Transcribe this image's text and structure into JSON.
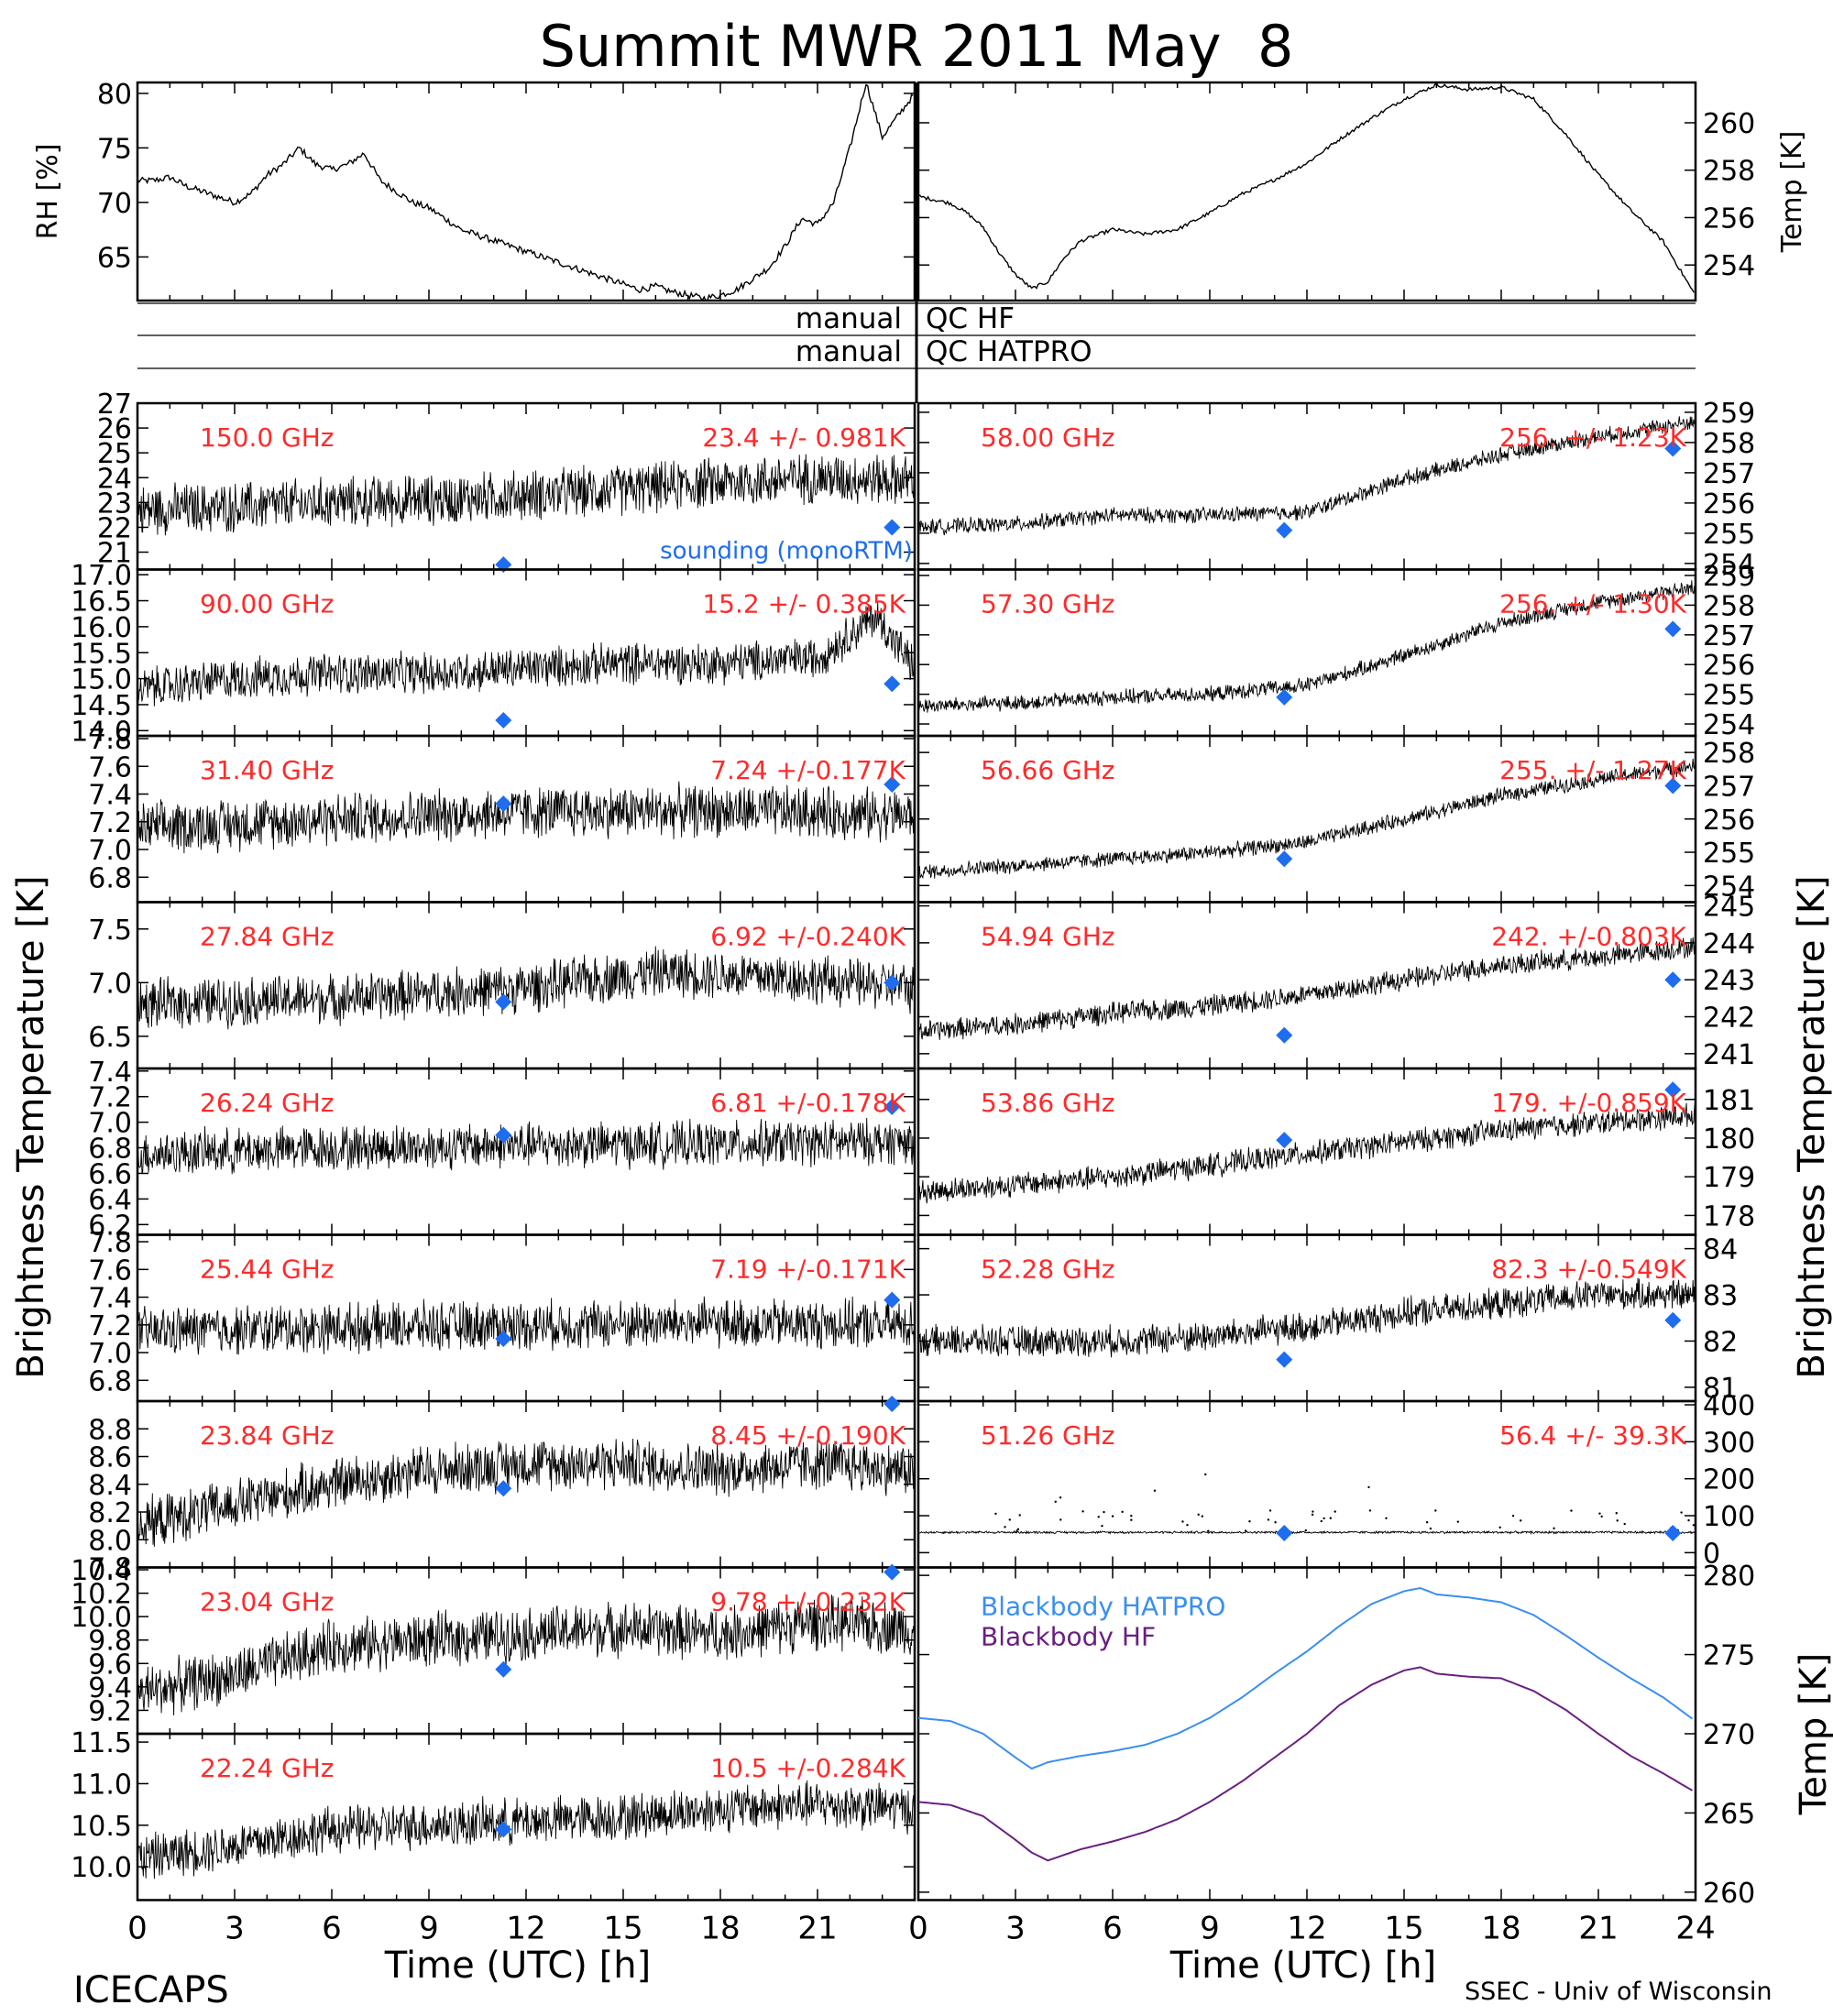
{
  "title": "Summit MWR 2011 May  8",
  "footer": {
    "left": "ICECAPS",
    "right": "SSEC - Univ of Wisconsin",
    "xlabel": "Time (UTC) [h]"
  },
  "axis_titles": {
    "left": "Brightness Temperature [K]",
    "right": "Brightness Temperature [K]"
  },
  "qc_labels": {
    "hf_left": "manual",
    "hf_right": "QC HF",
    "hatpro_left": "manual",
    "hatpro_right": "QC HATPRO"
  },
  "colors": {
    "annotation": "#ff2a2a",
    "sounding_marker": "#1e6cf0",
    "blackbody_hatpro": "#3a8ff0",
    "blackbody_hf": "#6a2080",
    "trace": "#000000"
  },
  "chart_data": [
    {
      "type": "line",
      "panel": "rh",
      "ylabel": "RH [%]",
      "xlim": [
        0,
        24
      ],
      "ylim": [
        61,
        81
      ],
      "yticks": [
        65,
        70,
        75,
        80
      ],
      "x": [
        0,
        0.5,
        1,
        1.5,
        2,
        2.5,
        3,
        3.5,
        4,
        4.5,
        5,
        5.5,
        6,
        6.5,
        7,
        7.5,
        8,
        8.5,
        9,
        9.5,
        10,
        10.5,
        11,
        11.5,
        12,
        12.5,
        13,
        13.5,
        14,
        14.5,
        15,
        15.5,
        16,
        16.5,
        17,
        17.5,
        18,
        18.5,
        19,
        19.5,
        20,
        20.5,
        21,
        21.5,
        22,
        22.5,
        23,
        23.5,
        24
      ],
      "y": [
        72,
        72,
        72.3,
        71.5,
        71,
        70.5,
        70,
        70.8,
        72.5,
        73.5,
        75,
        73.5,
        73,
        73.5,
        74.5,
        72,
        71,
        70,
        69.5,
        68.5,
        67.5,
        67,
        66.5,
        66,
        65.5,
        65,
        64.5,
        64,
        63.5,
        63,
        62.5,
        62,
        62.3,
        61.8,
        61.5,
        61.2,
        61.5,
        62,
        63,
        64,
        66,
        68.5,
        68,
        70,
        75,
        81,
        76,
        78,
        80
      ]
    },
    {
      "type": "line",
      "panel": "temp",
      "ylabel": "Temp [K]",
      "xlim": [
        0,
        24
      ],
      "ylim": [
        252.5,
        261.7
      ],
      "yticks": [
        254,
        256,
        258,
        260
      ],
      "x": [
        0,
        1,
        1.5,
        2,
        2.5,
        3,
        3.5,
        4,
        4.5,
        5,
        6,
        7,
        8,
        9,
        10,
        11,
        12,
        13,
        14,
        15,
        16,
        17,
        18,
        19,
        20,
        21,
        22,
        23,
        24
      ],
      "y": [
        256.9,
        256.6,
        256.2,
        255.6,
        254.5,
        253.6,
        253,
        253.3,
        254.3,
        255,
        255.5,
        255.3,
        255.5,
        256.2,
        257,
        257.6,
        258.3,
        259.3,
        260.2,
        261,
        261.6,
        261.4,
        261.5,
        261,
        259.5,
        257.8,
        256.3,
        255,
        252.7
      ]
    },
    {
      "type": "scatter",
      "panel": "channel",
      "side": "left",
      "freq_label": "150.0 GHz",
      "stat_label": "23.4 +/- 0.981K",
      "extra_label": "sounding (monoRTM)",
      "ylim": [
        20.3,
        27
      ],
      "ytick_labels": [
        "27",
        "26",
        "25",
        "24",
        "23",
        "22",
        "21"
      ],
      "yticks": [
        27,
        26,
        25,
        24,
        23,
        22,
        21
      ],
      "trend_x": [
        0,
        3,
        6,
        9,
        12,
        15,
        18,
        21,
        24
      ],
      "trend_y": [
        22.7,
        22.8,
        23.0,
        23.1,
        23.3,
        23.5,
        23.8,
        24.0,
        23.9
      ],
      "noise": 0.98,
      "sounding_x": [
        11.3,
        23.3
      ],
      "sounding_y": [
        20.5,
        22.0
      ]
    },
    {
      "type": "scatter",
      "panel": "channel",
      "side": "left",
      "freq_label": "90.00 GHz",
      "stat_label": "15.2 +/- 0.385K",
      "ylim": [
        13.9,
        17.1
      ],
      "ytick_labels": [
        "17.0",
        "16.5",
        "16.0",
        "15.5",
        "15.0",
        "14.5",
        "14.0"
      ],
      "yticks": [
        17.0,
        16.5,
        16.0,
        15.5,
        15.0,
        14.5,
        14.0
      ],
      "trend_x": [
        0,
        3,
        6,
        9,
        12,
        15,
        18,
        21,
        22.8,
        24
      ],
      "trend_y": [
        14.8,
        15.0,
        15.1,
        15.1,
        15.2,
        15.3,
        15.3,
        15.4,
        16.2,
        15.2
      ],
      "noise": 0.38,
      "sounding_x": [
        11.3,
        23.3
      ],
      "sounding_y": [
        14.2,
        14.9
      ]
    },
    {
      "type": "scatter",
      "panel": "channel",
      "side": "left",
      "freq_label": "31.40 GHz",
      "stat_label": "7.24 +/-0.177K",
      "ylim": [
        6.62,
        7.82
      ],
      "ytick_labels": [
        "7.8",
        "7.6",
        "7.4",
        "7.2",
        "7.0",
        "6.8"
      ],
      "yticks": [
        7.8,
        7.6,
        7.4,
        7.2,
        7.0,
        6.8
      ],
      "trend_x": [
        0,
        6,
        12,
        18,
        24
      ],
      "trend_y": [
        7.15,
        7.22,
        7.27,
        7.28,
        7.25
      ],
      "noise": 0.18,
      "sounding_x": [
        11.3,
        23.3
      ],
      "sounding_y": [
        7.33,
        7.47
      ]
    },
    {
      "type": "scatter",
      "panel": "channel",
      "side": "left",
      "freq_label": "27.84 GHz",
      "stat_label": "6.92 +/-0.240K",
      "ylim": [
        6.2,
        7.75
      ],
      "ytick_labels": [
        "7.5",
        "7.0",
        "6.5"
      ],
      "yticks": [
        7.5,
        7.0,
        6.5
      ],
      "trend_x": [
        0,
        6,
        12,
        16,
        20,
        24
      ],
      "trend_y": [
        6.8,
        6.85,
        6.95,
        7.1,
        7.05,
        6.95
      ],
      "noise": 0.22,
      "sounding_x": [
        11.3,
        23.3
      ],
      "sounding_y": [
        6.82,
        7.0
      ]
    },
    {
      "type": "scatter",
      "panel": "channel",
      "side": "left",
      "freq_label": "26.24 GHz",
      "stat_label": "6.81 +/-0.178K",
      "ylim": [
        6.12,
        7.42
      ],
      "ytick_labels": [
        "7.4",
        "7.2",
        "7.0",
        "6.8",
        "6.6",
        "6.4",
        "6.2"
      ],
      "yticks": [
        7.4,
        7.2,
        7.0,
        6.8,
        6.6,
        6.4,
        6.2
      ],
      "trend_x": [
        0,
        6,
        12,
        18,
        24
      ],
      "trend_y": [
        6.75,
        6.8,
        6.82,
        6.83,
        6.85
      ],
      "noise": 0.17,
      "sounding_x": [
        11.3,
        23.3
      ],
      "sounding_y": [
        6.9,
        7.12
      ]
    },
    {
      "type": "scatter",
      "panel": "channel",
      "side": "left",
      "freq_label": "25.44 GHz",
      "stat_label": "7.19 +/-0.171K",
      "ylim": [
        6.65,
        7.85
      ],
      "ytick_labels": [
        "7.8",
        "7.6",
        "7.4",
        "7.2",
        "7.0",
        "6.8"
      ],
      "yticks": [
        7.8,
        7.6,
        7.4,
        7.2,
        7.0,
        6.8
      ],
      "trend_x": [
        0,
        6,
        12,
        18,
        24
      ],
      "trend_y": [
        7.15,
        7.18,
        7.2,
        7.21,
        7.2
      ],
      "noise": 0.17,
      "sounding_x": [
        11.3,
        23.3
      ],
      "sounding_y": [
        7.1,
        7.38
      ]
    },
    {
      "type": "scatter",
      "panel": "channel",
      "side": "left",
      "freq_label": "23.84 GHz",
      "stat_label": "8.45 +/-0.190K",
      "ylim": [
        7.8,
        9.0
      ],
      "ytick_labels": [
        "8.8",
        "8.6",
        "8.4",
        "8.2",
        "8.0",
        "7.8"
      ],
      "yticks": [
        8.8,
        8.6,
        8.4,
        8.2,
        8.0,
        7.8
      ],
      "trend_x": [
        0,
        3,
        6,
        9,
        12,
        15,
        18,
        21,
        24
      ],
      "trend_y": [
        8.1,
        8.25,
        8.4,
        8.5,
        8.55,
        8.55,
        8.5,
        8.55,
        8.5
      ],
      "noise": 0.18,
      "sounding_x": [
        11.3,
        23.3
      ],
      "sounding_y": [
        8.37,
        8.98
      ]
    },
    {
      "type": "scatter",
      "panel": "channel",
      "side": "left",
      "freq_label": "23.04 GHz",
      "stat_label": "9.78 +/-0.232K",
      "ylim": [
        9.0,
        10.42
      ],
      "ytick_labels": [
        "10.4",
        "10.2",
        "10.0",
        "9.8",
        "9.6",
        "9.4",
        "9.2"
      ],
      "yticks": [
        10.4,
        10.2,
        10.0,
        9.8,
        9.6,
        9.4,
        9.2
      ],
      "trend_x": [
        0,
        3,
        6,
        9,
        12,
        15,
        18,
        21,
        24
      ],
      "trend_y": [
        9.35,
        9.5,
        9.75,
        9.8,
        9.85,
        9.9,
        9.85,
        9.95,
        9.9
      ],
      "noise": 0.22,
      "sounding_x": [
        11.3,
        23.3
      ],
      "sounding_y": [
        9.55,
        10.38
      ]
    },
    {
      "type": "scatter",
      "panel": "channel",
      "side": "left",
      "freq_label": "22.24 GHz",
      "stat_label": "10.5 +/-0.284K",
      "ylim": [
        9.6,
        11.6
      ],
      "ytick_labels": [
        "11.5",
        "11.0",
        "10.5",
        "10.0"
      ],
      "yticks": [
        11.5,
        11.0,
        10.5,
        10.0
      ],
      "trend_x": [
        0,
        3,
        6,
        9,
        12,
        15,
        18,
        21,
        24
      ],
      "trend_y": [
        10.1,
        10.25,
        10.45,
        10.5,
        10.55,
        10.6,
        10.7,
        10.75,
        10.7
      ],
      "noise": 0.27,
      "sounding_x": [
        11.3
      ],
      "sounding_y": [
        10.45
      ]
    },
    {
      "type": "scatter",
      "panel": "channel",
      "side": "right",
      "freq_label": "58.00 GHz",
      "stat_label": "256. +/- 1.23K",
      "ylim": [
        253.8,
        259.3
      ],
      "ytick_labels": [
        "259",
        "258",
        "257",
        "256",
        "255",
        "254"
      ],
      "yticks": [
        259,
        258,
        257,
        256,
        255,
        254
      ],
      "trend_x": [
        0,
        3,
        6,
        9,
        12,
        15,
        18,
        21,
        24
      ],
      "trend_y": [
        255.2,
        255.3,
        255.6,
        255.6,
        255.7,
        256.8,
        257.6,
        258.2,
        258.7
      ],
      "noise": 0.25,
      "sounding_x": [
        11.3,
        23.3
      ],
      "sounding_y": [
        255.1,
        257.8
      ]
    },
    {
      "type": "scatter",
      "panel": "channel",
      "side": "right",
      "freq_label": "57.30 GHz",
      "stat_label": "256. +/- 1.30K",
      "ylim": [
        253.6,
        259.2
      ],
      "ytick_labels": [
        "259",
        "258",
        "257",
        "256",
        "255",
        "254"
      ],
      "yticks": [
        259,
        258,
        257,
        256,
        255,
        254
      ],
      "trend_x": [
        0,
        3,
        6,
        9,
        12,
        15,
        18,
        21,
        24
      ],
      "trend_y": [
        254.6,
        254.7,
        254.9,
        255.0,
        255.3,
        256.3,
        257.4,
        258.1,
        258.6
      ],
      "noise": 0.25,
      "sounding_x": [
        11.3,
        23.3
      ],
      "sounding_y": [
        254.9,
        257.2
      ]
    },
    {
      "type": "scatter",
      "panel": "channel",
      "side": "right",
      "freq_label": "56.66 GHz",
      "stat_label": "255. +/- 1.27K",
      "ylim": [
        253.5,
        258.5
      ],
      "ytick_labels": [
        "258",
        "257",
        "256",
        "255",
        "254"
      ],
      "yticks": [
        258,
        257,
        256,
        255,
        254
      ],
      "trend_x": [
        0,
        3,
        6,
        9,
        12,
        15,
        18,
        21,
        24
      ],
      "trend_y": [
        254.4,
        254.6,
        254.8,
        255.0,
        255.3,
        256.0,
        256.7,
        257.2,
        257.6
      ],
      "noise": 0.22,
      "sounding_x": [
        11.3,
        23.3
      ],
      "sounding_y": [
        254.8,
        257.0
      ]
    },
    {
      "type": "scatter",
      "panel": "channel",
      "side": "right",
      "freq_label": "54.94 GHz",
      "stat_label": "242. +/-0.803K",
      "ylim": [
        240.6,
        245.1
      ],
      "ytick_labels": [
        "245",
        "244",
        "243",
        "242",
        "241"
      ],
      "yticks": [
        245,
        244,
        243,
        242,
        241
      ],
      "trend_x": [
        0,
        3,
        6,
        9,
        12,
        15,
        18,
        21,
        24
      ],
      "trend_y": [
        241.6,
        241.8,
        242.1,
        242.3,
        242.6,
        243.0,
        243.4,
        243.6,
        243.9
      ],
      "noise": 0.28,
      "sounding_x": [
        11.3,
        23.3
      ],
      "sounding_y": [
        241.5,
        243.0
      ]
    },
    {
      "type": "scatter",
      "panel": "channel",
      "side": "right",
      "freq_label": "53.86 GHz",
      "stat_label": "179. +/-0.859K",
      "ylim": [
        177.5,
        181.8
      ],
      "ytick_labels": [
        "181",
        "180",
        "179",
        "178"
      ],
      "yticks": [
        181,
        180,
        179,
        178
      ],
      "trend_x": [
        0,
        3,
        6,
        9,
        12,
        15,
        18,
        21,
        24
      ],
      "trend_y": [
        178.6,
        178.8,
        179.0,
        179.3,
        179.6,
        179.9,
        180.2,
        180.4,
        180.6
      ],
      "noise": 0.3,
      "sounding_x": [
        11.3,
        23.3
      ],
      "sounding_y": [
        179.95,
        181.25
      ]
    },
    {
      "type": "scatter",
      "panel": "channel",
      "side": "right",
      "freq_label": "52.28 GHz",
      "stat_label": "82.3 +/-0.549K",
      "ylim": [
        80.7,
        84.3
      ],
      "ytick_labels": [
        "84",
        "83",
        "82",
        "81"
      ],
      "yticks": [
        84,
        83,
        82,
        81
      ],
      "trend_x": [
        0,
        3,
        6,
        9,
        12,
        15,
        18,
        21,
        24
      ],
      "trend_y": [
        82.0,
        82.0,
        82.0,
        82.1,
        82.3,
        82.6,
        82.8,
        83.0,
        83.0
      ],
      "noise": 0.32,
      "sounding_x": [
        11.3,
        23.3
      ],
      "sounding_y": [
        81.6,
        82.45
      ]
    },
    {
      "type": "scatter",
      "panel": "channel",
      "side": "right",
      "freq_label": "51.26 GHz",
      "stat_label": "56.4 +/- 39.3K",
      "ylim": [
        -40,
        410
      ],
      "ytick_labels": [
        "400",
        "300",
        "200",
        "100",
        "0"
      ],
      "yticks": [
        400,
        300,
        200,
        100,
        0
      ],
      "trend_x": [
        0,
        24
      ],
      "trend_y": [
        55,
        55
      ],
      "noise": 3,
      "sounding_x": [
        11.3,
        23.3
      ],
      "sounding_y": [
        53,
        53
      ]
    },
    {
      "type": "line",
      "panel": "blackbody",
      "ylabel": "Temp [K]",
      "xlim": [
        0,
        24
      ],
      "ylim": [
        259.5,
        280.5
      ],
      "yticks": [
        280,
        275,
        270,
        265,
        260
      ],
      "series": [
        {
          "name": "Blackbody HATPRO",
          "x": [
            0,
            1,
            2,
            3,
            3.5,
            4,
            5,
            6,
            7,
            8,
            9,
            10,
            11,
            12,
            13,
            14,
            15,
            15.5,
            16,
            17,
            18,
            19,
            20,
            21,
            22,
            23,
            24
          ],
          "y": [
            271.0,
            270.8,
            270.0,
            268.5,
            267.8,
            268.2,
            268.6,
            268.9,
            269.3,
            270.0,
            271.0,
            272.3,
            273.8,
            275.2,
            276.8,
            278.2,
            279.0,
            279.2,
            278.8,
            278.6,
            278.3,
            277.5,
            276.2,
            274.8,
            273.5,
            272.3,
            270.8
          ]
        },
        {
          "name": "Blackbody HF",
          "x": [
            0,
            1,
            2,
            3,
            3.5,
            4,
            5,
            6,
            7,
            8,
            9,
            10,
            11,
            12,
            13,
            14,
            15,
            15.5,
            16,
            17,
            18,
            19,
            20,
            21,
            22,
            23,
            24
          ],
          "y": [
            265.7,
            265.5,
            264.8,
            263.3,
            262.5,
            262.0,
            262.7,
            263.2,
            263.8,
            264.6,
            265.7,
            267.0,
            268.5,
            270.0,
            271.8,
            273.1,
            274.0,
            274.2,
            273.8,
            273.6,
            273.5,
            272.7,
            271.5,
            270.0,
            268.6,
            267.5,
            266.3
          ]
        }
      ]
    }
  ],
  "xaxis": {
    "left_ticks": [
      "0",
      "3",
      "6",
      "9",
      "12",
      "15",
      "18",
      "21"
    ],
    "right_ticks": [
      "0",
      "3",
      "6",
      "9",
      "12",
      "15",
      "18",
      "21",
      "24"
    ]
  }
}
